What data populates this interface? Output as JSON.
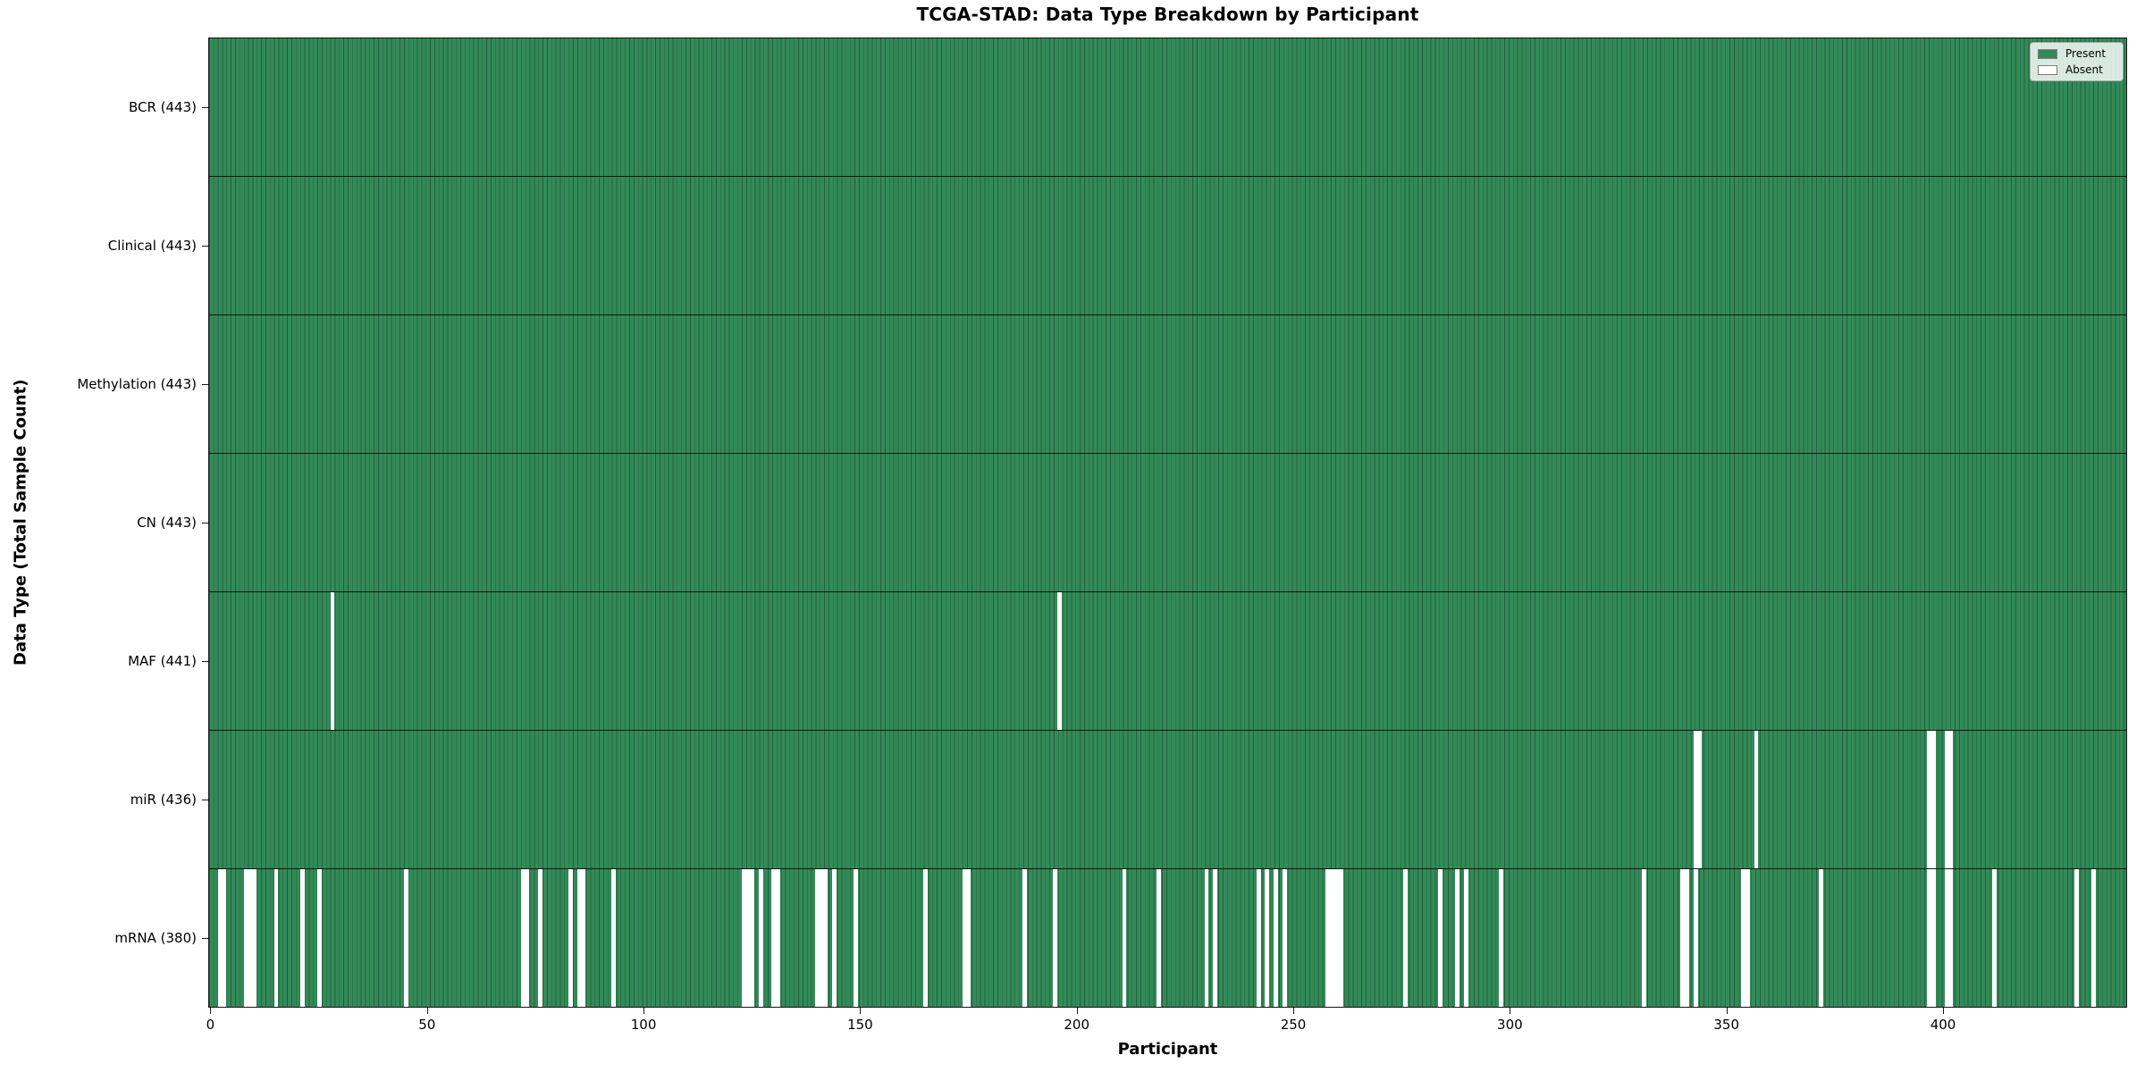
{
  "chart_data": {
    "type": "heatmap",
    "title": "TCGA-STAD: Data Type Breakdown by Participant",
    "xlabel": "Participant",
    "ylabel": "Data Type (Total Sample Count)",
    "n_participants": 443,
    "x_ticks": [
      0,
      50,
      100,
      150,
      200,
      250,
      300,
      350,
      400
    ],
    "colors": {
      "present": "#338a58",
      "cell_edge": "#20613d",
      "absent": "#ffffff"
    },
    "legend": [
      {
        "label": "Present",
        "color": "#338a58"
      },
      {
        "label": "Absent",
        "color": "#ffffff"
      }
    ],
    "rows": [
      {
        "name": "BCR",
        "label": "BCR (443)",
        "present_count": 443,
        "absent_participants": []
      },
      {
        "name": "Clinical",
        "label": "Clinical (443)",
        "present_count": 443,
        "absent_participants": []
      },
      {
        "name": "Methylation",
        "label": "Methylation (443)",
        "present_count": 443,
        "absent_participants": []
      },
      {
        "name": "CN",
        "label": "CN (443)",
        "present_count": 443,
        "absent_participants": []
      },
      {
        "name": "MAF",
        "label": "MAF (441)",
        "present_count": 441,
        "absent_participants": [
          28,
          196
        ]
      },
      {
        "name": "miR",
        "label": "miR (436)",
        "present_count": 436,
        "absent_participants": [
          343,
          344,
          357,
          397,
          398,
          401,
          402
        ]
      },
      {
        "name": "mRNA",
        "label": "mRNA (380)",
        "present_count": 380,
        "absent_participants": [
          2,
          3,
          8,
          9,
          10,
          15,
          21,
          25,
          45,
          72,
          73,
          76,
          83,
          85,
          86,
          93,
          123,
          124,
          125,
          127,
          130,
          131,
          140,
          141,
          142,
          144,
          149,
          165,
          174,
          175,
          188,
          195,
          211,
          219,
          230,
          232,
          242,
          244,
          246,
          248,
          258,
          259,
          260,
          261,
          276,
          284,
          288,
          290,
          298,
          331,
          340,
          341,
          343,
          354,
          355,
          372,
          397,
          398,
          401,
          402,
          412,
          431,
          435
        ]
      }
    ]
  }
}
